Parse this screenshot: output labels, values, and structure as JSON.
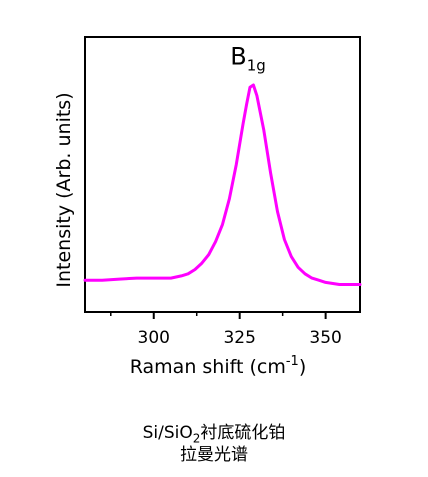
{
  "chart_data": {
    "type": "line",
    "xlabel_main": "Raman shift (cm",
    "xlabel_sup": "-1",
    "xlabel_close": ")",
    "ylabel": "Intensity (Arb. units)",
    "xlim": [
      280,
      360
    ],
    "ylim": [
      0,
      1.0
    ],
    "xticks": [
      "300",
      "325",
      "350"
    ],
    "xtick_values": [
      300,
      325,
      350
    ],
    "annotation": {
      "text": "B",
      "sub": "1g",
      "x": 328,
      "y": 0.97
    },
    "series": [
      {
        "color": "#ff00ff",
        "x": [
          280,
          285,
          290,
          295,
          300,
          305,
          308,
          310,
          312,
          314,
          316,
          318,
          320,
          322,
          324,
          326,
          327,
          328,
          329,
          330,
          332,
          334,
          336,
          338,
          340,
          342,
          344,
          346,
          348,
          350,
          354,
          358,
          360
        ],
        "y": [
          0.02,
          0.02,
          0.025,
          0.03,
          0.03,
          0.03,
          0.04,
          0.05,
          0.07,
          0.1,
          0.14,
          0.2,
          0.28,
          0.4,
          0.56,
          0.75,
          0.84,
          0.92,
          0.93,
          0.88,
          0.72,
          0.52,
          0.34,
          0.21,
          0.13,
          0.08,
          0.05,
          0.03,
          0.02,
          0.01,
          0.0,
          0.0,
          0.0
        ]
      }
    ]
  },
  "caption": {
    "line1_pre": "Si/SiO",
    "line1_sub": "2",
    "line1_post": "衬底硫化铂",
    "line2": "拉曼光谱"
  }
}
